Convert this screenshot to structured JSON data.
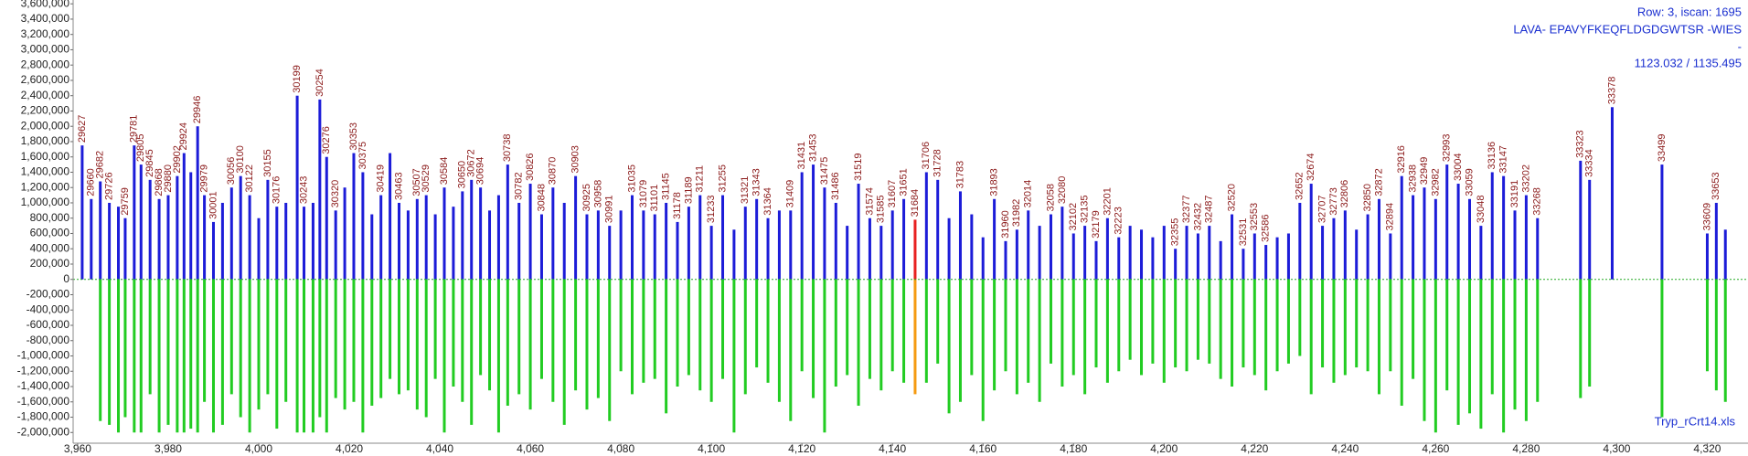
{
  "chart_data": {
    "type": "bar",
    "annotations": [
      "Row: 3, iscan: 1695",
      "LAVA- EPAVYFKEQFLDGDGWTSR -WIES",
      "-",
      "1123.032 / 1135.495",
      "Tryp_rCrt14.xls"
    ],
    "xlim": [
      3959,
      4329
    ],
    "ylim": [
      -2140000,
      3650000
    ],
    "xticks": [
      {
        "value": 3960,
        "label": "3,960"
      },
      {
        "value": 3980,
        "label": "3,980"
      },
      {
        "value": 4000,
        "label": "4,000"
      },
      {
        "value": 4020,
        "label": "4,020"
      },
      {
        "value": 4040,
        "label": "4,040"
      },
      {
        "value": 4060,
        "label": "4,060"
      },
      {
        "value": 4080,
        "label": "4,080"
      },
      {
        "value": 4100,
        "label": "4,100"
      },
      {
        "value": 4120,
        "label": "4,120"
      },
      {
        "value": 4140,
        "label": "4,140"
      },
      {
        "value": 4160,
        "label": "4,160"
      },
      {
        "value": 4180,
        "label": "4,180"
      },
      {
        "value": 4200,
        "label": "4,200"
      },
      {
        "value": 4220,
        "label": "4,220"
      },
      {
        "value": 4240,
        "label": "4,240"
      },
      {
        "value": 4260,
        "label": "4,260"
      },
      {
        "value": 4280,
        "label": "4,280"
      },
      {
        "value": 4300,
        "label": "4,300"
      },
      {
        "value": 4320,
        "label": "4,320"
      }
    ],
    "yticks": [
      {
        "value": -2000000,
        "label": "-2,000,000"
      },
      {
        "value": -1800000,
        "label": "-1,800,000"
      },
      {
        "value": -1600000,
        "label": "-1,600,000"
      },
      {
        "value": -1400000,
        "label": "-1,400,000"
      },
      {
        "value": -1200000,
        "label": "-1,200,000"
      },
      {
        "value": -1000000,
        "label": "-1,000,000"
      },
      {
        "value": -800000,
        "label": "-800,000"
      },
      {
        "value": -600000,
        "label": "-600,000"
      },
      {
        "value": -400000,
        "label": "-400,000"
      },
      {
        "value": -200000,
        "label": "-200,000"
      },
      0,
      {
        "value": 200000,
        "label": "200,000"
      },
      {
        "value": 400000,
        "label": "400,000"
      },
      {
        "value": 600000,
        "label": "600,000"
      },
      {
        "value": 800000,
        "label": "800,000"
      },
      {
        "value": 1000000,
        "label": "1,000,000"
      },
      {
        "value": 1200000,
        "label": "1,200,000"
      },
      {
        "value": 1400000,
        "label": "1,400,000"
      },
      {
        "value": 1600000,
        "label": "1,600,000"
      },
      {
        "value": 1800000,
        "label": "1,800,000"
      },
      {
        "value": 2000000,
        "label": "2,000,000"
      },
      {
        "value": 2200000,
        "label": "2,200,000"
      },
      {
        "value": 2400000,
        "label": "2,400,000"
      },
      {
        "value": 2600000,
        "label": "2,600,000"
      },
      {
        "value": 2800000,
        "label": "2,800,000"
      },
      {
        "value": 3000000,
        "label": "3,000,000"
      },
      {
        "value": 3200000,
        "label": "3,200,000"
      },
      {
        "value": 3400000,
        "label": "3,400,000"
      },
      {
        "value": 3600000,
        "label": "3,600,000"
      }
    ],
    "x": [
      3961,
      3963,
      3965,
      3967,
      3969,
      3970.5,
      3972.5,
      3974,
      3976,
      3978,
      3980,
      3982,
      3983.5,
      3985,
      3986.5,
      3988,
      3990,
      3992,
      3994,
      3996,
      3998,
      4000,
      4002,
      4004,
      4006,
      4008.5,
      4010,
      4012,
      4013.5,
      4015,
      4017,
      4019,
      4021,
      4023,
      4025,
      4027,
      4029,
      4031,
      4033,
      4035,
      4037,
      4039,
      4041,
      4043,
      4045,
      4047,
      4049,
      4051,
      4053,
      4055,
      4057.5,
      4060,
      4062.5,
      4065,
      4067.5,
      4070,
      4072.5,
      4075,
      4077.5,
      4080,
      4082.5,
      4085,
      4087.5,
      4090,
      4092.5,
      4095,
      4097.5,
      4100,
      4102.5,
      4105,
      4107.5,
      4110,
      4112.5,
      4115,
      4117.5,
      4120,
      4122.5,
      4125,
      4127.5,
      4130,
      4132.5,
      4135,
      4137.5,
      4140,
      4142.5,
      4145,
      4147.5,
      4150,
      4152.5,
      4155,
      4157.5,
      4160,
      4162.5,
      4165,
      4167.5,
      4170,
      4172.5,
      4175,
      4177.5,
      4180,
      4182.5,
      4185,
      4187.5,
      4190,
      4192.5,
      4195,
      4197.5,
      4200,
      4202.5,
      4205,
      4207.5,
      4210,
      4212.5,
      4215,
      4217.5,
      4220,
      4222.5,
      4225,
      4227.5,
      4230,
      4232.5,
      4235,
      4237.5,
      4240,
      4242.5,
      4245,
      4247.5,
      4250,
      4252.5,
      4255,
      4257.5,
      4260,
      4262.5,
      4265,
      4267.5,
      4270,
      4272.5,
      4275,
      4277.5,
      4280,
      4282.5,
      4292,
      4294,
      4299,
      4310,
      4320,
      4322,
      4324
    ],
    "series": [
      {
        "color": "#1c1cd8",
        "highlight_index": 85,
        "highlight_color": "#e82020",
        "label_color": "#8b1a1a",
        "values": [
          1750000,
          1050000,
          1280000,
          1000000,
          950000,
          800000,
          1750000,
          1500000,
          1300000,
          1050000,
          1100000,
          1350000,
          1650000,
          1400000,
          2000000,
          1100000,
          750000,
          1000000,
          1200000,
          1350000,
          1100000,
          800000,
          1300000,
          950000,
          1000000,
          2400000,
          950000,
          1000000,
          2350000,
          1600000,
          900000,
          1200000,
          1650000,
          1400000,
          850000,
          1100000,
          1650000,
          1000000,
          900000,
          1050000,
          1100000,
          850000,
          1200000,
          950000,
          1150000,
          1300000,
          1200000,
          900000,
          1100000,
          1500000,
          1000000,
          1250000,
          850000,
          1200000,
          1000000,
          1350000,
          850000,
          900000,
          700000,
          900000,
          1100000,
          900000,
          850000,
          1000000,
          750000,
          950000,
          1100000,
          700000,
          1100000,
          650000,
          950000,
          1050000,
          800000,
          900000,
          900000,
          1400000,
          1500000,
          1200000,
          1000000,
          700000,
          1250000,
          800000,
          700000,
          900000,
          1050000,
          780000,
          1400000,
          1300000,
          800000,
          1150000,
          850000,
          550000,
          1050000,
          500000,
          650000,
          900000,
          700000,
          850000,
          950000,
          600000,
          700000,
          500000,
          800000,
          550000,
          700000,
          650000,
          550000,
          700000,
          400000,
          700000,
          600000,
          700000,
          500000,
          850000,
          400000,
          600000,
          450000,
          550000,
          600000,
          1000000,
          1250000,
          700000,
          800000,
          900000,
          650000,
          850000,
          1050000,
          600000,
          1350000,
          1100000,
          1200000,
          1050000,
          1500000,
          1250000,
          1050000,
          700000,
          1400000,
          1350000,
          900000,
          1100000,
          800000,
          1550000,
          1300000,
          2250000,
          1500000,
          600000,
          1000000,
          650000
        ],
        "labels": [
          "29627",
          "29660",
          "29682",
          "29726",
          null,
          "29759",
          "29781",
          "29805",
          "29845",
          "29868",
          "29880",
          "29902",
          "29924",
          null,
          "29946",
          "29979",
          "30001",
          null,
          "30056",
          "30100",
          "30122",
          null,
          "30155",
          "30176",
          null,
          "30199",
          "30243",
          null,
          "30254",
          "30276",
          "30320",
          null,
          "30353",
          "30375",
          null,
          "30419",
          null,
          "30463",
          null,
          "30507",
          "30529",
          null,
          "30584",
          null,
          "30650",
          "30672",
          "30694",
          null,
          null,
          "30738",
          "30782",
          "30826",
          "30848",
          "30870",
          null,
          "30903",
          "30925",
          "30958",
          "30991",
          null,
          "31035",
          "31079",
          "31101",
          "31145",
          "31178",
          "31189",
          "31211",
          "31233",
          "31255",
          null,
          "31321",
          "31343",
          "31364",
          null,
          "31409",
          "31431",
          "31453",
          "31475",
          "31486",
          null,
          "31519",
          "31574",
          "31585",
          "31607",
          "31651",
          "31684",
          "31706",
          "31728",
          null,
          "31783",
          null,
          null,
          "31893",
          "31960",
          "31982",
          "32014",
          null,
          "32058",
          "32080",
          "32102",
          "32135",
          "32179",
          "32201",
          "32223",
          null,
          null,
          null,
          null,
          "32355",
          "32377",
          "32432",
          "32487",
          null,
          "32520",
          "32531",
          "32553",
          "32586",
          null,
          null,
          "32652",
          "32674",
          "32707",
          "32773",
          "32806",
          null,
          "32850",
          "32872",
          "32894",
          "32916",
          "32938",
          "32949",
          "32982",
          "32993",
          "33004",
          "33059",
          "33048",
          "33136",
          "33147",
          "33191",
          "33202",
          "33268",
          "33323",
          "33334",
          "33378",
          "33499",
          "33609",
          "33653",
          null
        ]
      },
      {
        "color": "#22cc22",
        "highlight_index": 85,
        "highlight_color": "#f59a10",
        "values": [
          null,
          null,
          -1850000,
          -1900000,
          -2000000,
          -1800000,
          -2000000,
          -2000000,
          -1500000,
          -2000000,
          -1900000,
          -2000000,
          -2000000,
          -1950000,
          -2000000,
          -1600000,
          -2000000,
          -1900000,
          -1500000,
          -1800000,
          -2000000,
          -1700000,
          -1500000,
          -1950000,
          -1600000,
          -2000000,
          -2000000,
          -2000000,
          -1800000,
          -2000000,
          -1550000,
          -1700000,
          -1600000,
          -2000000,
          -1650000,
          -1550000,
          -1300000,
          -1500000,
          -1450000,
          -1700000,
          -1800000,
          -1300000,
          -2000000,
          -1400000,
          -1600000,
          -1900000,
          -1250000,
          -1450000,
          -2000000,
          -1650000,
          -1500000,
          -1700000,
          -1300000,
          -1600000,
          -1900000,
          -1450000,
          -1700000,
          -1550000,
          -1850000,
          -1200000,
          -1500000,
          -1350000,
          -1300000,
          -1750000,
          -1400000,
          -1250000,
          -1450000,
          -1600000,
          -1300000,
          -2000000,
          -1500000,
          -1150000,
          -1350000,
          -1600000,
          -1850000,
          -1200000,
          -1550000,
          -2000000,
          -1400000,
          -1250000,
          -1650000,
          -1300000,
          -1450000,
          -1200000,
          -1350000,
          -1500000,
          -1350000,
          -1100000,
          -1750000,
          -1600000,
          -1250000,
          -1850000,
          -1450000,
          -1200000,
          -1500000,
          -1350000,
          -1600000,
          -1100000,
          -1400000,
          -1250000,
          -1500000,
          -1150000,
          -1350000,
          -1200000,
          -1050000,
          -1250000,
          -1100000,
          -1350000,
          -1150000,
          -1200000,
          -1050000,
          -1100000,
          -1300000,
          -1400000,
          -1150000,
          -1250000,
          -1450000,
          -1200000,
          -1100000,
          -1000000,
          -1500000,
          -1150000,
          -1350000,
          -1250000,
          -1150000,
          -1200000,
          -1500000,
          -1200000,
          -1650000,
          -1300000,
          -1850000,
          -2000000,
          -1450000,
          -1900000,
          -1750000,
          -1950000,
          -1500000,
          -2000000,
          -1700000,
          -1850000,
          -1600000,
          -1550000,
          -1400000,
          null,
          -1800000,
          -1200000,
          -1450000,
          -1600000
        ]
      }
    ]
  }
}
